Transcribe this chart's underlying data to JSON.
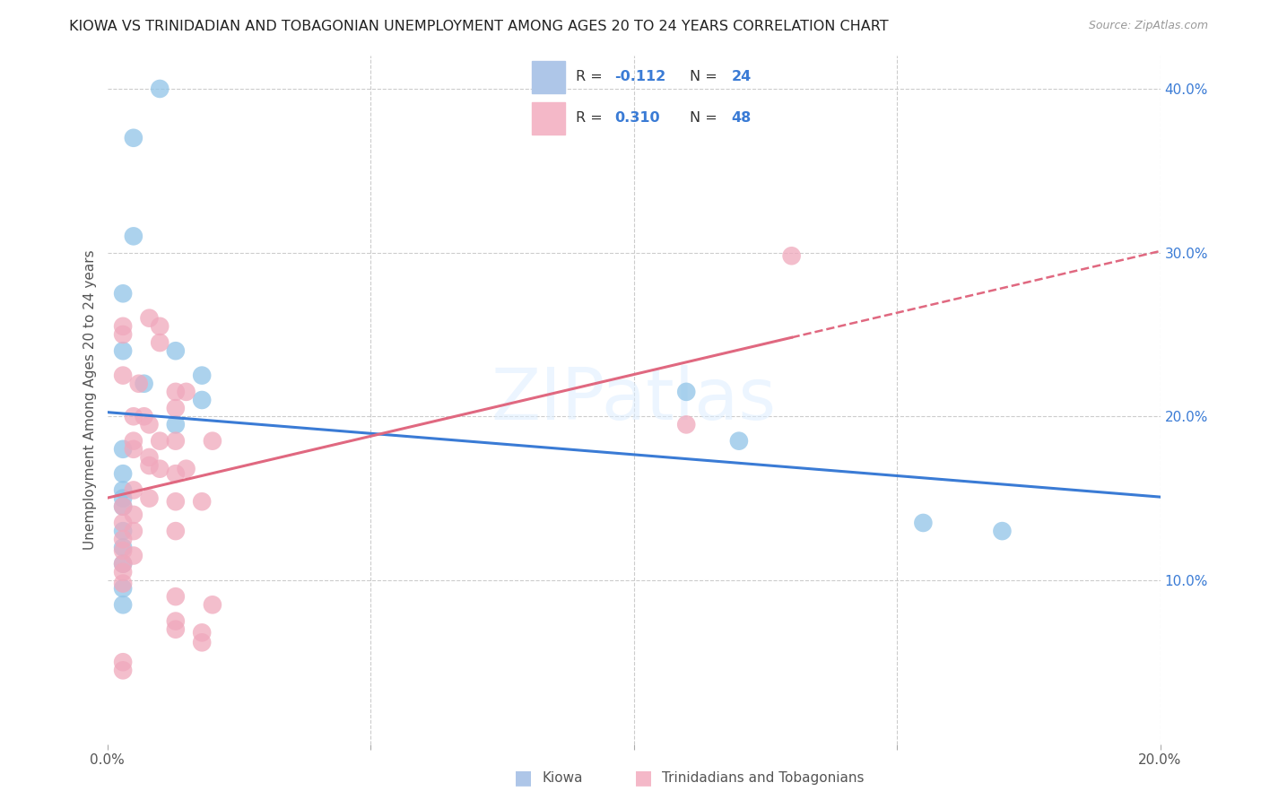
{
  "title": "KIOWA VS TRINIDADIAN AND TOBAGONIAN UNEMPLOYMENT AMONG AGES 20 TO 24 YEARS CORRELATION CHART",
  "source": "Source: ZipAtlas.com",
  "ylabel": "Unemployment Among Ages 20 to 24 years",
  "xlim": [
    0.0,
    0.2
  ],
  "ylim": [
    0.0,
    0.42
  ],
  "kiowa_color": "#90c4e8",
  "trinidadian_color": "#f0a8bc",
  "kiowa_line_color": "#3a7bd5",
  "trinidadian_line_color": "#e06880",
  "background_color": "#ffffff",
  "watermark": "ZIPatlas",
  "kiowa_scatter": [
    [
      0.01,
      0.4
    ],
    [
      0.005,
      0.37
    ],
    [
      0.005,
      0.31
    ],
    [
      0.003,
      0.275
    ],
    [
      0.003,
      0.24
    ],
    [
      0.013,
      0.24
    ],
    [
      0.018,
      0.225
    ],
    [
      0.007,
      0.22
    ],
    [
      0.018,
      0.21
    ],
    [
      0.013,
      0.195
    ],
    [
      0.003,
      0.18
    ],
    [
      0.003,
      0.165
    ],
    [
      0.003,
      0.155
    ],
    [
      0.003,
      0.15
    ],
    [
      0.003,
      0.145
    ],
    [
      0.003,
      0.13
    ],
    [
      0.003,
      0.12
    ],
    [
      0.003,
      0.11
    ],
    [
      0.003,
      0.095
    ],
    [
      0.003,
      0.085
    ],
    [
      0.11,
      0.215
    ],
    [
      0.12,
      0.185
    ],
    [
      0.155,
      0.135
    ],
    [
      0.17,
      0.13
    ]
  ],
  "trinidadian_scatter": [
    [
      0.003,
      0.255
    ],
    [
      0.003,
      0.25
    ],
    [
      0.008,
      0.26
    ],
    [
      0.01,
      0.255
    ],
    [
      0.01,
      0.245
    ],
    [
      0.003,
      0.225
    ],
    [
      0.006,
      0.22
    ],
    [
      0.013,
      0.215
    ],
    [
      0.015,
      0.215
    ],
    [
      0.013,
      0.205
    ],
    [
      0.005,
      0.2
    ],
    [
      0.007,
      0.2
    ],
    [
      0.008,
      0.195
    ],
    [
      0.005,
      0.185
    ],
    [
      0.01,
      0.185
    ],
    [
      0.013,
      0.185
    ],
    [
      0.02,
      0.185
    ],
    [
      0.005,
      0.18
    ],
    [
      0.008,
      0.175
    ],
    [
      0.008,
      0.17
    ],
    [
      0.01,
      0.168
    ],
    [
      0.015,
      0.168
    ],
    [
      0.013,
      0.165
    ],
    [
      0.005,
      0.155
    ],
    [
      0.008,
      0.15
    ],
    [
      0.013,
      0.148
    ],
    [
      0.018,
      0.148
    ],
    [
      0.003,
      0.145
    ],
    [
      0.005,
      0.14
    ],
    [
      0.003,
      0.135
    ],
    [
      0.005,
      0.13
    ],
    [
      0.013,
      0.13
    ],
    [
      0.003,
      0.125
    ],
    [
      0.003,
      0.118
    ],
    [
      0.005,
      0.115
    ],
    [
      0.003,
      0.11
    ],
    [
      0.003,
      0.105
    ],
    [
      0.003,
      0.098
    ],
    [
      0.013,
      0.09
    ],
    [
      0.02,
      0.085
    ],
    [
      0.013,
      0.075
    ],
    [
      0.013,
      0.07
    ],
    [
      0.018,
      0.068
    ],
    [
      0.018,
      0.062
    ],
    [
      0.003,
      0.05
    ],
    [
      0.003,
      0.045
    ],
    [
      0.13,
      0.298
    ],
    [
      0.11,
      0.195
    ]
  ]
}
